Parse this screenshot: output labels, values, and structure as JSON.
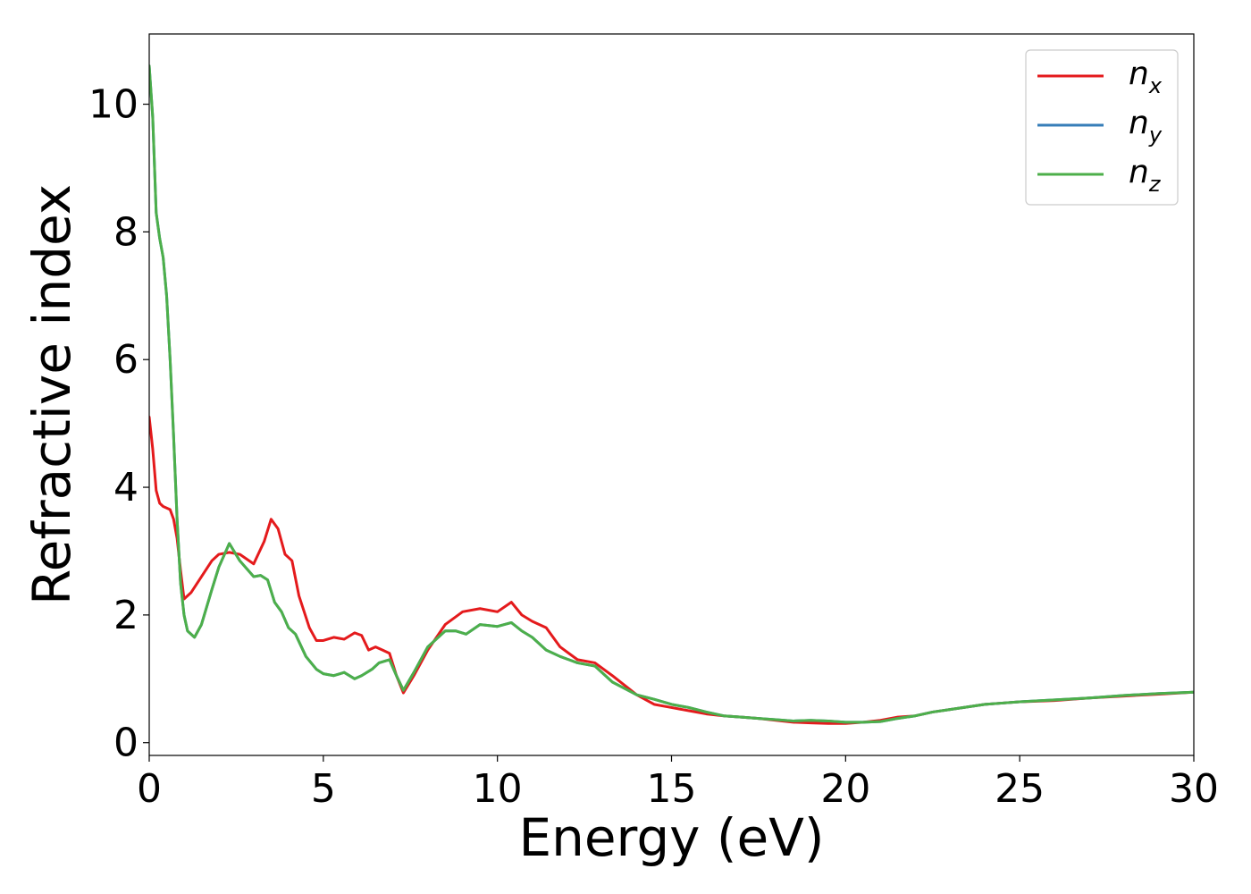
{
  "chart_data": {
    "type": "line",
    "title": "",
    "xlabel": "Energy (eV)",
    "ylabel": "Refractive index",
    "xlim": [
      0,
      30
    ],
    "ylim": [
      -0.2,
      11.1
    ],
    "xticks": [
      0,
      5,
      10,
      15,
      20,
      25,
      30
    ],
    "yticks": [
      0,
      2,
      4,
      6,
      8,
      10
    ],
    "xtick_labels": [
      "0",
      "5",
      "10",
      "15",
      "20",
      "25",
      "30"
    ],
    "ytick_labels": [
      "0",
      "2",
      "4",
      "6",
      "8",
      "10"
    ],
    "grid": false,
    "legend_position": "top-right",
    "series": [
      {
        "name": "n_x",
        "label_main": "n",
        "label_sub": "x",
        "color": "#e41a1c",
        "x": [
          0,
          0.1,
          0.2,
          0.3,
          0.4,
          0.6,
          0.7,
          0.8,
          0.9,
          1.0,
          1.2,
          1.5,
          1.8,
          2.0,
          2.3,
          2.6,
          3.0,
          3.3,
          3.5,
          3.7,
          3.9,
          4.1,
          4.3,
          4.6,
          4.8,
          5.0,
          5.3,
          5.6,
          5.9,
          6.1,
          6.3,
          6.5,
          6.7,
          6.9,
          7.1,
          7.3,
          7.6,
          8.0,
          8.5,
          9.0,
          9.5,
          10.0,
          10.4,
          10.7,
          11.0,
          11.4,
          11.8,
          12.3,
          12.8,
          13.3,
          14.0,
          14.5,
          15.0,
          15.5,
          16.0,
          16.5,
          17.0,
          17.5,
          18.0,
          18.5,
          19.0,
          19.5,
          20.0,
          20.5,
          21.0,
          21.5,
          22.0,
          22.5,
          23.0,
          23.5,
          24.0,
          24.5,
          25.0,
          26.0,
          27.0,
          28.0,
          29.0,
          30.0
        ],
        "y": [
          5.1,
          4.6,
          3.95,
          3.75,
          3.7,
          3.65,
          3.5,
          3.2,
          2.7,
          2.25,
          2.35,
          2.6,
          2.85,
          2.95,
          2.98,
          2.95,
          2.8,
          3.15,
          3.5,
          3.35,
          2.95,
          2.85,
          2.3,
          1.8,
          1.6,
          1.6,
          1.65,
          1.62,
          1.72,
          1.68,
          1.45,
          1.5,
          1.45,
          1.4,
          1.05,
          0.78,
          1.05,
          1.45,
          1.85,
          2.05,
          2.1,
          2.05,
          2.2,
          2.0,
          1.9,
          1.8,
          1.5,
          1.3,
          1.25,
          1.05,
          0.75,
          0.6,
          0.55,
          0.5,
          0.45,
          0.42,
          0.4,
          0.38,
          0.35,
          0.32,
          0.31,
          0.3,
          0.3,
          0.32,
          0.35,
          0.4,
          0.42,
          0.48,
          0.52,
          0.56,
          0.6,
          0.62,
          0.64,
          0.66,
          0.7,
          0.73,
          0.76,
          0.79
        ]
      },
      {
        "name": "n_y",
        "label_main": "n",
        "label_sub": "y",
        "color": "#377eb8",
        "x": [
          0,
          0.1,
          0.2,
          0.3,
          0.4,
          0.5,
          0.6,
          0.7,
          0.8,
          0.9,
          1.0,
          1.1,
          1.3,
          1.5,
          1.8,
          2.0,
          2.3,
          2.6,
          3.0,
          3.2,
          3.4,
          3.6,
          3.8,
          4.0,
          4.2,
          4.5,
          4.8,
          5.0,
          5.3,
          5.6,
          5.9,
          6.1,
          6.4,
          6.6,
          6.9,
          7.1,
          7.3,
          7.6,
          8.0,
          8.5,
          8.8,
          9.1,
          9.5,
          10.0,
          10.4,
          10.7,
          11.0,
          11.4,
          11.8,
          12.3,
          12.8,
          13.3,
          14.0,
          14.5,
          15.0,
          15.5,
          16.0,
          16.5,
          17.0,
          17.5,
          18.0,
          18.5,
          19.0,
          19.5,
          20.0,
          20.5,
          21.0,
          21.5,
          22.0,
          22.5,
          23.0,
          23.5,
          24.0,
          24.5,
          25.0,
          26.0,
          27.0,
          28.0,
          29.0,
          30.0
        ],
        "y": [
          10.6,
          9.8,
          8.3,
          7.9,
          7.6,
          7.0,
          6.0,
          4.8,
          3.5,
          2.5,
          2.0,
          1.75,
          1.65,
          1.85,
          2.4,
          2.75,
          3.12,
          2.85,
          2.6,
          2.62,
          2.55,
          2.2,
          2.05,
          1.8,
          1.7,
          1.35,
          1.15,
          1.08,
          1.05,
          1.1,
          1.0,
          1.05,
          1.15,
          1.25,
          1.3,
          1.05,
          0.82,
          1.1,
          1.5,
          1.75,
          1.75,
          1.7,
          1.85,
          1.82,
          1.88,
          1.75,
          1.65,
          1.45,
          1.35,
          1.25,
          1.2,
          0.95,
          0.75,
          0.68,
          0.6,
          0.55,
          0.48,
          0.42,
          0.4,
          0.38,
          0.36,
          0.34,
          0.35,
          0.34,
          0.32,
          0.32,
          0.33,
          0.38,
          0.42,
          0.48,
          0.52,
          0.56,
          0.6,
          0.62,
          0.64,
          0.67,
          0.7,
          0.74,
          0.77,
          0.79
        ]
      },
      {
        "name": "n_z",
        "label_main": "n",
        "label_sub": "z",
        "color": "#4daf4a",
        "x": [
          0,
          0.1,
          0.2,
          0.3,
          0.4,
          0.5,
          0.6,
          0.7,
          0.8,
          0.9,
          1.0,
          1.1,
          1.3,
          1.5,
          1.8,
          2.0,
          2.3,
          2.6,
          3.0,
          3.2,
          3.4,
          3.6,
          3.8,
          4.0,
          4.2,
          4.5,
          4.8,
          5.0,
          5.3,
          5.6,
          5.9,
          6.1,
          6.4,
          6.6,
          6.9,
          7.1,
          7.3,
          7.6,
          8.0,
          8.5,
          8.8,
          9.1,
          9.5,
          10.0,
          10.4,
          10.7,
          11.0,
          11.4,
          11.8,
          12.3,
          12.8,
          13.3,
          14.0,
          14.5,
          15.0,
          15.5,
          16.0,
          16.5,
          17.0,
          17.5,
          18.0,
          18.5,
          19.0,
          19.5,
          20.0,
          20.5,
          21.0,
          21.5,
          22.0,
          22.5,
          23.0,
          23.5,
          24.0,
          24.5,
          25.0,
          26.0,
          27.0,
          28.0,
          29.0,
          30.0
        ],
        "y": [
          10.6,
          9.8,
          8.3,
          7.9,
          7.6,
          7.0,
          6.0,
          4.8,
          3.5,
          2.5,
          2.0,
          1.75,
          1.65,
          1.85,
          2.4,
          2.75,
          3.12,
          2.85,
          2.6,
          2.62,
          2.55,
          2.2,
          2.05,
          1.8,
          1.7,
          1.35,
          1.15,
          1.08,
          1.05,
          1.1,
          1.0,
          1.05,
          1.15,
          1.25,
          1.3,
          1.05,
          0.82,
          1.1,
          1.5,
          1.75,
          1.75,
          1.7,
          1.85,
          1.82,
          1.88,
          1.75,
          1.65,
          1.45,
          1.35,
          1.25,
          1.2,
          0.95,
          0.75,
          0.68,
          0.6,
          0.55,
          0.48,
          0.42,
          0.4,
          0.38,
          0.36,
          0.34,
          0.35,
          0.34,
          0.32,
          0.32,
          0.33,
          0.38,
          0.42,
          0.48,
          0.52,
          0.56,
          0.6,
          0.62,
          0.64,
          0.67,
          0.7,
          0.74,
          0.77,
          0.79
        ]
      }
    ]
  }
}
